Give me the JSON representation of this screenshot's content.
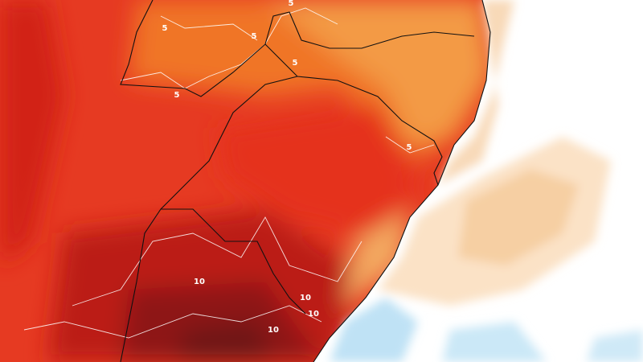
{
  "contour_labels": [
    5,
    5,
    5,
    5,
    5,
    5,
    10,
    10,
    10,
    10
  ]
}
